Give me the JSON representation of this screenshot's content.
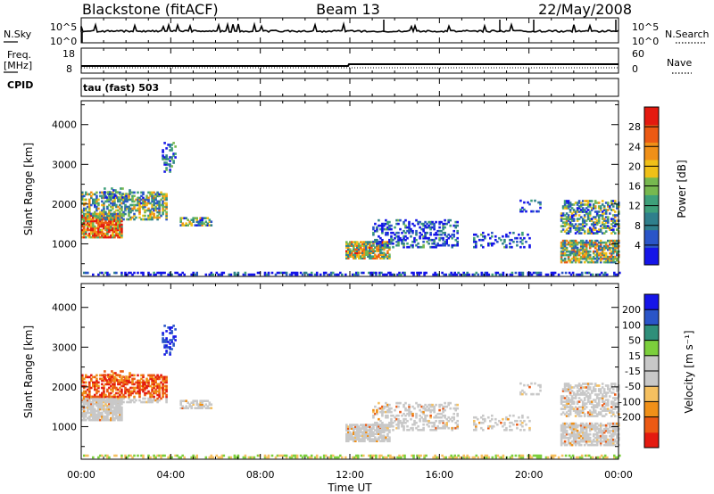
{
  "header": {
    "station": "Blackstone (fitACF)",
    "beam": "Beam 13",
    "date": "22/May/2008"
  },
  "left_labels": {
    "nsky": "N.Sky",
    "freq_line1": "Freq.",
    "freq_line2": "[MHz]",
    "cpid": "CPID"
  },
  "right_labels": {
    "nsearch": "N.Search",
    "nave": "Nave"
  },
  "cpid_text": "tau (fast) 503",
  "colors": {
    "frame": "#000000",
    "power_scale": [
      "#1515e8",
      "#2a55c8",
      "#2f7f8c",
      "#3ea07a",
      "#77b84f",
      "#f0c018",
      "#f09018",
      "#ec5a14",
      "#e41a10"
    ],
    "velocity_scale": [
      "#e41a10",
      "#ec5a14",
      "#f09018",
      "#f5c060",
      "#c8c8c8",
      "#c8c8c8",
      "#7ccf3c",
      "#2f8f7a",
      "#2a55c8",
      "#1515e8"
    ]
  },
  "chart_data": [
    {
      "type": "line",
      "name": "noise_panel",
      "left_axis": {
        "label": "N.Sky",
        "ticks": [
          "10^5",
          "10^0"
        ]
      },
      "right_axis": {
        "label": "N.Search",
        "ticks": [
          "10^5",
          "10^0"
        ]
      }
    },
    {
      "type": "line",
      "name": "frequency_panel",
      "left_axis": {
        "label": "Freq. [MHz]",
        "ticks": [
          "18",
          "8"
        ]
      },
      "right_axis": {
        "label": "Nave",
        "ticks": [
          "60",
          "0"
        ]
      }
    },
    {
      "type": "heatmap",
      "name": "power_panel",
      "xlabel": "",
      "ylabel": "Slant Range [km]",
      "ylim": [
        180,
        4600
      ],
      "yticks": [
        "1000",
        "2000",
        "3000",
        "4000"
      ],
      "xlim": [
        0,
        24
      ],
      "colorbar": {
        "label": "Power [dB]",
        "ticks": [
          "4",
          "8",
          "12",
          "16",
          "20",
          "24",
          "28"
        ],
        "range": [
          0,
          32
        ]
      }
    },
    {
      "type": "heatmap",
      "name": "velocity_panel",
      "xlabel": "Time UT",
      "ylabel": "Slant Range [km]",
      "ylim": [
        180,
        4600
      ],
      "yticks": [
        "1000",
        "2000",
        "3000",
        "4000"
      ],
      "xlim": [
        0,
        24
      ],
      "xticks": [
        "00:00",
        "04:00",
        "08:00",
        "12:00",
        "16:00",
        "20:00",
        "00:00"
      ],
      "colorbar": {
        "label": "Velocity [m s⁻¹]",
        "ticks": [
          "200",
          "100",
          "50",
          "15",
          "-15",
          "-50",
          "-100",
          "-200"
        ]
      }
    }
  ]
}
